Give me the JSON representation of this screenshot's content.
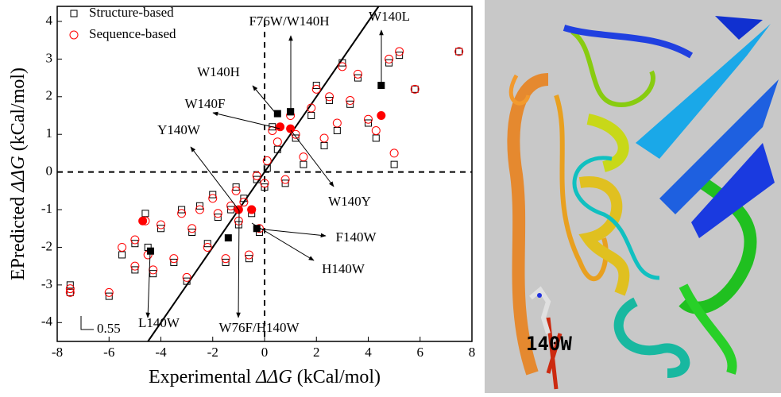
{
  "chart_data": {
    "type": "scatter",
    "xlabel": [
      "Experimental ",
      "ΔΔG",
      " (kCal/mol)"
    ],
    "ylabel": [
      "EPredicted ",
      "ΔΔG",
      " (kCal/mol)"
    ],
    "xlim": [
      -8,
      8
    ],
    "ylim": [
      -4.5,
      4.4
    ],
    "xticks": [
      -8,
      -6,
      -4,
      -2,
      0,
      2,
      4,
      6,
      8
    ],
    "yticks": [
      -4,
      -3,
      -2,
      -1,
      0,
      1,
      2,
      3,
      4
    ],
    "x": [
      -7.5,
      -7.5,
      -6,
      -5.5,
      -5,
      -5,
      -4.6,
      -4.5,
      -4.3,
      -4,
      -3.5,
      -3.2,
      -3,
      -2.8,
      -2.5,
      -2.2,
      -2,
      -1.8,
      -1.5,
      -1.3,
      -1.1,
      -1,
      -0.8,
      -0.6,
      -0.5,
      -0.3,
      -0.2,
      0,
      0.1,
      0.3,
      0.5,
      0.8,
      1,
      1.2,
      1.5,
      1.8,
      2,
      2.3,
      2.5,
      2.8,
      3,
      3.3,
      3.6,
      4,
      4.3,
      4.8,
      5,
      5.2,
      5.8,
      7.5
    ],
    "series": [
      {
        "name": "Structure-based",
        "color": "#000000",
        "marker": "square",
        "values": [
          -3.0,
          -3.2,
          -3.3,
          -2.2,
          -1.9,
          -2.6,
          -1.1,
          -2.0,
          -2.7,
          -1.5,
          -2.4,
          -1.0,
          -2.9,
          -1.6,
          -0.9,
          -1.9,
          -0.6,
          -1.2,
          -2.4,
          -1.0,
          -0.4,
          -1.4,
          -0.7,
          -2.3,
          -1.1,
          -0.2,
          -1.6,
          -0.4,
          0.1,
          1.2,
          0.6,
          -0.3,
          1.6,
          0.9,
          0.2,
          1.5,
          2.3,
          0.7,
          1.9,
          1.1,
          2.9,
          1.8,
          2.5,
          1.3,
          0.9,
          2.9,
          0.2,
          3.1,
          2.2,
          3.2
        ],
        "highlighted": {
          "x": [
            0.5,
            1.0,
            4.5,
            -4.4,
            -1.4,
            -0.3
          ],
          "values": [
            1.55,
            1.6,
            2.3,
            -2.1,
            -1.75,
            -1.5
          ]
        }
      },
      {
        "name": "Sequence-based",
        "color": "#ff0000",
        "marker": "circle",
        "values": [
          -3.1,
          -3.2,
          -3.2,
          -2.0,
          -1.8,
          -2.5,
          -1.3,
          -2.2,
          -2.6,
          -1.4,
          -2.3,
          -1.1,
          -2.8,
          -1.5,
          -1.0,
          -2.0,
          -0.7,
          -1.1,
          -2.3,
          -0.9,
          -0.5,
          -1.3,
          -0.8,
          -2.2,
          -1.0,
          -0.1,
          -1.5,
          -0.3,
          0.3,
          1.1,
          0.8,
          -0.2,
          1.5,
          1.0,
          0.4,
          1.7,
          2.2,
          0.9,
          2.0,
          1.3,
          2.8,
          1.9,
          2.6,
          1.4,
          1.1,
          3.0,
          0.5,
          3.2,
          2.2,
          3.2
        ],
        "highlighted": {
          "x": [
            0.6,
            1.0,
            4.5,
            -4.7,
            -0.5,
            -1.0
          ],
          "values": [
            1.2,
            1.15,
            1.5,
            -1.3,
            -1.0,
            -1.0
          ]
        }
      }
    ],
    "annotations": [
      "F76W/W140H",
      "W140L",
      "W140H",
      "W140F",
      "Y140W",
      "W140Y",
      "F140W",
      "H140W",
      "W76F/H140W",
      "L140W"
    ],
    "slope_label": "0.55"
  },
  "image": {
    "label": "140W"
  }
}
